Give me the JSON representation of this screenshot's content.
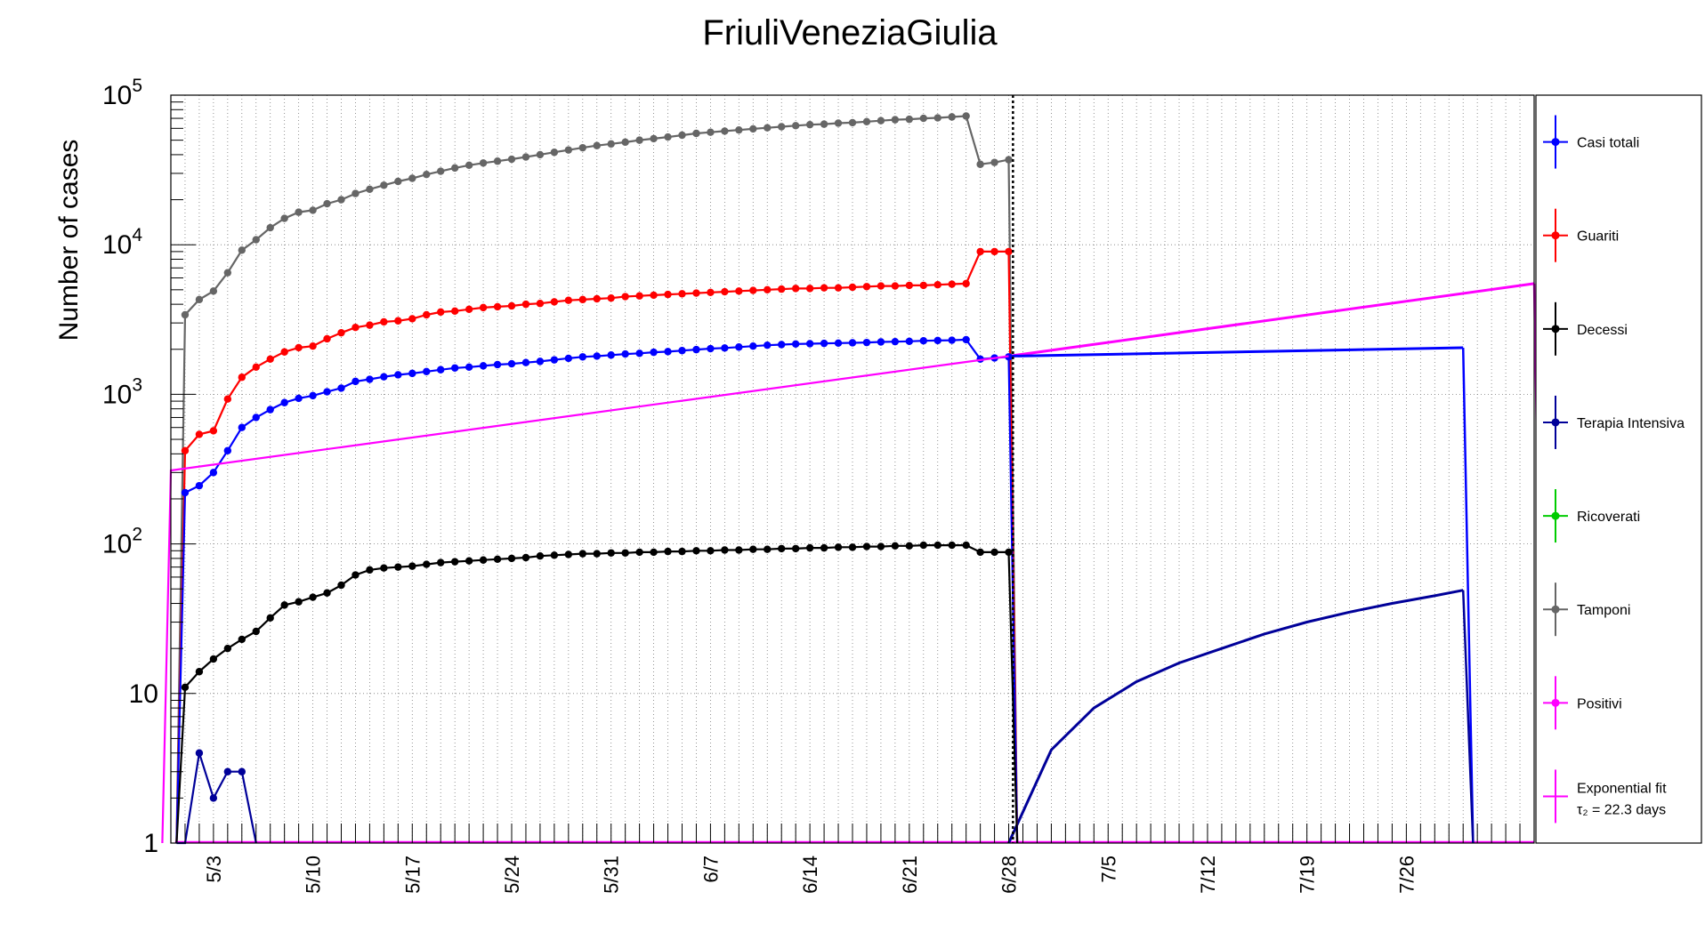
{
  "chart_data": {
    "type": "line",
    "title": "FriuliVeneziaGiulia",
    "ylabel": "Number of cases",
    "xlabel": "",
    "y_scale": "log",
    "ylim": [
      1,
      100000
    ],
    "xlim_days": [
      0,
      96
    ],
    "x_ticks": [
      "5/3",
      "5/10",
      "5/17",
      "5/24",
      "5/31",
      "6/7",
      "6/14",
      "6/21",
      "6/28",
      "7/5",
      "7/12",
      "7/19",
      "7/26"
    ],
    "y_tick_labels": [
      "1",
      "10",
      "10^2",
      "10^3",
      "10^4",
      "10^5"
    ],
    "grid": true,
    "legend_position": "right",
    "legend": [
      {
        "label": "Casi totali",
        "color": "#0000ff"
      },
      {
        "label": "Guariti",
        "color": "#ff0000"
      },
      {
        "label": "Decessi",
        "color": "#000000"
      },
      {
        "label": "Terapia Intensiva",
        "color": "#000099"
      },
      {
        "label": "Ricoverati",
        "color": "#00cc00"
      },
      {
        "label": "Tamponi",
        "color": "#666666"
      },
      {
        "label": "Positivi",
        "color": "#ff00ff"
      },
      {
        "label": "Exponential fit",
        "label2": "τ₂ = 22.3 days",
        "color": "#ff00ff"
      }
    ],
    "series": [
      {
        "name": "Tamponi",
        "color": "#666666",
        "x": [
          1,
          2,
          3,
          4,
          5,
          6,
          7,
          8,
          9,
          10,
          11,
          12,
          13,
          14,
          15,
          16,
          17,
          18,
          19,
          20,
          21,
          22,
          23,
          24,
          25,
          26,
          27,
          28,
          29,
          30,
          31,
          32,
          33,
          34,
          35,
          36,
          37,
          38,
          39,
          40,
          41,
          42,
          43,
          44,
          45,
          46,
          47,
          48,
          49,
          50,
          51,
          52,
          53,
          54,
          55,
          56,
          57,
          58,
          59
        ],
        "y": [
          3400,
          4300,
          4900,
          6500,
          9200,
          10800,
          13000,
          15000,
          16500,
          17000,
          18800,
          20000,
          22000,
          23500,
          25000,
          26500,
          27800,
          29500,
          31000,
          32600,
          34000,
          35200,
          36200,
          37300,
          38600,
          40000,
          41500,
          43000,
          44500,
          46000,
          47200,
          48500,
          50000,
          51200,
          52500,
          54000,
          55500,
          56500,
          57500,
          58500,
          59500,
          60500,
          61500,
          62500,
          63500,
          64000,
          65000,
          65500,
          66500,
          67500,
          68500,
          69000,
          70000,
          70500,
          71500,
          72500,
          34500,
          35500,
          37000
        ]
      },
      {
        "name": "Guariti",
        "color": "#ff0000",
        "x": [
          1,
          2,
          3,
          4,
          5,
          6,
          7,
          8,
          9,
          10,
          11,
          12,
          13,
          14,
          15,
          16,
          17,
          18,
          19,
          20,
          21,
          22,
          23,
          24,
          25,
          26,
          27,
          28,
          29,
          30,
          31,
          32,
          33,
          34,
          35,
          36,
          37,
          38,
          39,
          40,
          41,
          42,
          43,
          44,
          45,
          46,
          47,
          48,
          49,
          50,
          51,
          52,
          53,
          54,
          55,
          56,
          57,
          58,
          59
        ],
        "y": [
          420,
          540,
          570,
          930,
          1300,
          1520,
          1720,
          1920,
          2050,
          2100,
          2350,
          2580,
          2800,
          2900,
          3050,
          3100,
          3200,
          3400,
          3550,
          3600,
          3700,
          3800,
          3850,
          3900,
          4000,
          4050,
          4150,
          4250,
          4300,
          4350,
          4400,
          4500,
          4550,
          4600,
          4650,
          4700,
          4750,
          4800,
          4850,
          4900,
          4950,
          5000,
          5050,
          5100,
          5100,
          5150,
          5150,
          5200,
          5250,
          5300,
          5300,
          5350,
          5350,
          5400,
          5450,
          5500,
          9000,
          9000,
          9000
        ]
      },
      {
        "name": "Casi totali",
        "color": "#0000ff",
        "x": [
          1,
          2,
          3,
          4,
          5,
          6,
          7,
          8,
          9,
          10,
          11,
          12,
          13,
          14,
          15,
          16,
          17,
          18,
          19,
          20,
          21,
          22,
          23,
          24,
          25,
          26,
          27,
          28,
          29,
          30,
          31,
          32,
          33,
          34,
          35,
          36,
          37,
          38,
          39,
          40,
          41,
          42,
          43,
          44,
          45,
          46,
          47,
          48,
          49,
          50,
          51,
          52,
          53,
          54,
          55,
          56,
          57,
          58,
          59
        ],
        "y": [
          220,
          245,
          300,
          420,
          600,
          700,
          790,
          880,
          940,
          980,
          1040,
          1100,
          1220,
          1260,
          1310,
          1350,
          1380,
          1420,
          1460,
          1500,
          1520,
          1550,
          1580,
          1600,
          1630,
          1660,
          1700,
          1740,
          1780,
          1800,
          1830,
          1860,
          1880,
          1910,
          1930,
          1960,
          1990,
          2020,
          2040,
          2070,
          2100,
          2130,
          2150,
          2170,
          2180,
          2190,
          2200,
          2210,
          2220,
          2240,
          2250,
          2260,
          2280,
          2290,
          2300,
          2320,
          1720,
          1750,
          1780
        ]
      },
      {
        "name": "Decessi",
        "color": "#000000",
        "x": [
          1,
          2,
          3,
          4,
          5,
          6,
          7,
          8,
          9,
          10,
          11,
          12,
          13,
          14,
          15,
          16,
          17,
          18,
          19,
          20,
          21,
          22,
          23,
          24,
          25,
          26,
          27,
          28,
          29,
          30,
          31,
          32,
          33,
          34,
          35,
          36,
          37,
          38,
          39,
          40,
          41,
          42,
          43,
          44,
          45,
          46,
          47,
          48,
          49,
          50,
          51,
          52,
          53,
          54,
          55,
          56,
          57,
          58,
          59
        ],
        "y": [
          11,
          14,
          17,
          20,
          23,
          26,
          32,
          39,
          41,
          44,
          47,
          53,
          62,
          67,
          69,
          70,
          71,
          73,
          75,
          76,
          77,
          78,
          79,
          80,
          81,
          83,
          84,
          85,
          86,
          86,
          87,
          87,
          88,
          88,
          89,
          89,
          90,
          90,
          91,
          91,
          92,
          92,
          93,
          93,
          94,
          94,
          95,
          95,
          96,
          96,
          97,
          97,
          98,
          98,
          98,
          98,
          88,
          88,
          88
        ]
      },
      {
        "name": "Terapia Intensiva",
        "color": "#000099",
        "x": [
          1,
          2,
          3,
          4,
          5,
          6
        ],
        "y": [
          1,
          4,
          2,
          3,
          3,
          1
        ]
      },
      {
        "name": "Positivi",
        "color": "#ff00ff",
        "x": [
          0,
          59
        ],
        "y": [
          310,
          1800
        ]
      }
    ],
    "fit_series": [
      {
        "color": "#ff00ff",
        "x": [
          59,
          96
        ],
        "y": [
          1800,
          5500
        ]
      },
      {
        "color": "#0000ff",
        "x": [
          59,
          91
        ],
        "y": [
          1800,
          2050
        ]
      },
      {
        "color": "#000099",
        "x": [
          59,
          62,
          65,
          68,
          71,
          74,
          77,
          80,
          83,
          86,
          89,
          91
        ],
        "y": [
          1,
          4.2,
          8,
          12,
          16,
          20,
          25,
          30,
          35,
          40,
          45,
          49
        ]
      }
    ],
    "vertical_marker_day": 59.3
  }
}
